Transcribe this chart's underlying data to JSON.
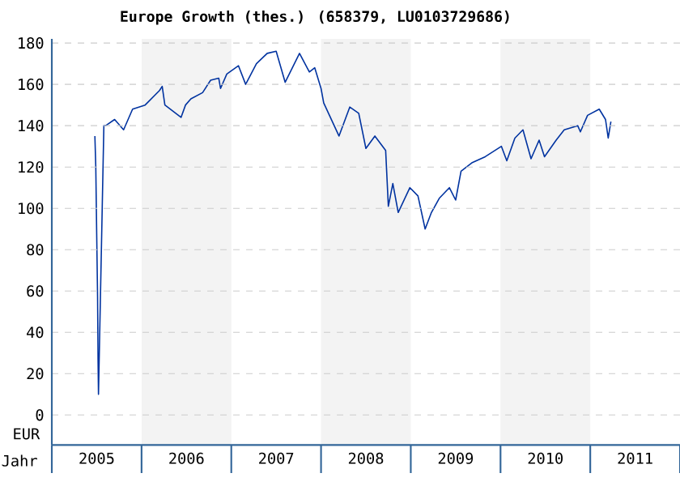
{
  "chart_data": {
    "type": "line",
    "title": "Europe Growth (thes.) (658379, LU0103729686)",
    "xlabel": "Jahr",
    "ylabel": "EUR",
    "xlim": [
      2005,
      2012
    ],
    "ylim": [
      -14.5,
      182
    ],
    "xticks": [
      {
        "value": 2005.5,
        "label": "2005"
      },
      {
        "value": 2006.5,
        "label": "2006"
      },
      {
        "value": 2007.5,
        "label": "2007"
      },
      {
        "value": 2008.5,
        "label": "2008"
      },
      {
        "value": 2009.5,
        "label": "2009"
      },
      {
        "value": 2010.5,
        "label": "2010"
      },
      {
        "value": 2011.5,
        "label": "2011"
      }
    ],
    "yticks": [
      0,
      20,
      40,
      60,
      80,
      100,
      120,
      140,
      160,
      180
    ],
    "grid": "y",
    "marker": "none",
    "line_style": "solid",
    "bands": [
      {
        "axis": "x",
        "from": 2006,
        "to": 2007,
        "color": "#f3f3f3"
      },
      {
        "axis": "x",
        "from": 2008,
        "to": 2009,
        "color": "#f3f3f3"
      },
      {
        "axis": "x",
        "from": 2010,
        "to": 2011,
        "color": "#f3f3f3"
      }
    ],
    "series": [
      {
        "color": "#0033a0",
        "x": [
          2005.48,
          2005.49,
          2005.5,
          2005.51,
          2005.515,
          2005.52,
          2005.55,
          2005.58,
          2005.6,
          2005.7,
          2005.8,
          2005.9,
          2006.04,
          2006.2,
          2006.23,
          2006.26,
          2006.44,
          2006.49,
          2006.55,
          2006.68,
          2006.77,
          2006.86,
          2006.88,
          2006.95,
          2007.08,
          2007.16,
          2007.28,
          2007.4,
          2007.5,
          2007.6,
          2007.76,
          2007.87,
          2007.93,
          2008.0,
          2008.03,
          2008.2,
          2008.32,
          2008.42,
          2008.5,
          2008.6,
          2008.72,
          2008.75,
          2008.8,
          2008.86,
          2008.99,
          2009.08,
          2009.16,
          2009.23,
          2009.32,
          2009.43,
          2009.5,
          2009.56,
          2009.68,
          2009.83,
          2010.01,
          2010.07,
          2010.16,
          2010.25,
          2010.34,
          2010.43,
          2010.49,
          2010.62,
          2010.71,
          2010.86,
          2010.89,
          2010.97,
          2011.1,
          2011.17,
          2011.2,
          2011.23
        ],
        "values": [
          135,
          120,
          88,
          57,
          27,
          10,
          75,
          140,
          140,
          143,
          138,
          148,
          150,
          157,
          159,
          150,
          144,
          150,
          153,
          156,
          162,
          163,
          158,
          165,
          169,
          160,
          170,
          175,
          176,
          161,
          175,
          166,
          168,
          158,
          151,
          135,
          149,
          146,
          129,
          135,
          128,
          101,
          112,
          98,
          110,
          106,
          90,
          98,
          105,
          110,
          104,
          118,
          122,
          125,
          130,
          123,
          134,
          138,
          124,
          133,
          125,
          133,
          138,
          140,
          137,
          145,
          148,
          143,
          134,
          142
        ]
      }
    ]
  }
}
